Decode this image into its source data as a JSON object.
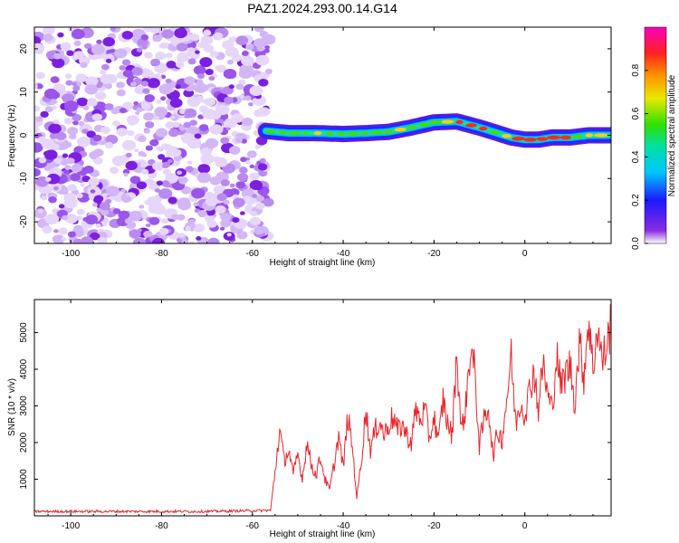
{
  "title": "PAZ1.2024.293.00.14.G14",
  "colors": {
    "snr_line": "#e8252a",
    "noise_purple": "#7b1fe0",
    "frame": "#000000"
  },
  "chart_data": [
    {
      "type": "heatmap",
      "title": "PAZ1.2024.293.00.14.G14",
      "xlabel": "Height of straight line (km)",
      "ylabel": "Frequency (Hz)",
      "xlim": [
        -108,
        19
      ],
      "ylim": [
        -25,
        25
      ],
      "x_ticks": [
        "-100",
        "-80",
        "-60",
        "-40",
        "-20",
        "0"
      ],
      "y_ticks": [
        "-20",
        "-10",
        "0",
        "10",
        "20"
      ],
      "grid": false,
      "noise_region_x": [
        -108,
        -57
      ],
      "signal_track": {
        "x": [
          -57,
          -52,
          -46,
          -40,
          -35,
          -30,
          -25,
          -20,
          -15,
          -10,
          -6,
          -3,
          0,
          3,
          6,
          10,
          14,
          19
        ],
        "frequency_hz": [
          1.0,
          0.5,
          0.5,
          0.3,
          0.5,
          0.8,
          1.8,
          3.0,
          3.2,
          1.8,
          0.5,
          -0.5,
          -1.0,
          -1.0,
          -0.5,
          -0.5,
          0,
          0
        ]
      },
      "colorbar": {
        "label": "Normalized spectral amplitude",
        "range": [
          0,
          1
        ],
        "ticks": [
          "0.0",
          "0.2",
          "0.4",
          "0.6",
          "0.8"
        ],
        "colormap": "rainbow (purple → blue → cyan → green → yellow → orange → red → magenta)"
      }
    },
    {
      "type": "line",
      "xlabel": "Height of straight line (km)",
      "ylabel": "SNR (10 * v/v)",
      "xlim": [
        -108,
        19
      ],
      "ylim": [
        0,
        5900
      ],
      "x_ticks": [
        "-100",
        "-80",
        "-60",
        "-40",
        "-20",
        "0"
      ],
      "y_ticks": [
        "1000",
        "2000",
        "3000",
        "4000",
        "5000"
      ],
      "grid": false,
      "series": [
        {
          "x": [
            -108,
            -90,
            -70,
            -56,
            -55,
            -54,
            -53,
            -52,
            -51,
            -50,
            -49,
            -48,
            -47,
            -46,
            -45,
            -44,
            -43,
            -42,
            -41,
            -40,
            -39,
            -38,
            -37,
            -36,
            -35,
            -34,
            -33,
            -32,
            -31,
            -30,
            -29,
            -28,
            -27,
            -26,
            -25,
            -24,
            -23,
            -22,
            -21,
            -20,
            -19,
            -18,
            -17,
            -16,
            -15,
            -14,
            -13,
            -12,
            -11,
            -10,
            -9,
            -8,
            -7,
            -6,
            -5,
            -4,
            -3,
            -2,
            -1,
            0,
            1,
            2,
            3,
            4,
            5,
            6,
            7,
            8,
            9,
            10,
            11,
            12,
            13,
            14,
            15,
            16,
            17,
            18,
            19
          ],
          "values": [
            120,
            120,
            120,
            150,
            1200,
            2350,
            1500,
            1800,
            1100,
            1700,
            1000,
            2000,
            1400,
            1100,
            1600,
            1000,
            700,
            1400,
            2200,
            1300,
            2700,
            1900,
            500,
            1500,
            2900,
            1800,
            2300,
            2600,
            2200,
            2500,
            2700,
            2300,
            2500,
            2200,
            2000,
            2900,
            2600,
            2900,
            2100,
            2700,
            2000,
            3200,
            2500,
            2200,
            4500,
            2300,
            3000,
            4600,
            3900,
            1900,
            2600,
            3000,
            1600,
            2300,
            2100,
            3200,
            4300,
            2500,
            3100,
            2800,
            3400,
            4000,
            2900,
            4200,
            3300,
            2900,
            4400,
            3500,
            3900,
            4100,
            3100,
            4700,
            3800,
            5400,
            4000,
            5200,
            4200,
            4600,
            5300
          ]
        }
      ]
    }
  ]
}
